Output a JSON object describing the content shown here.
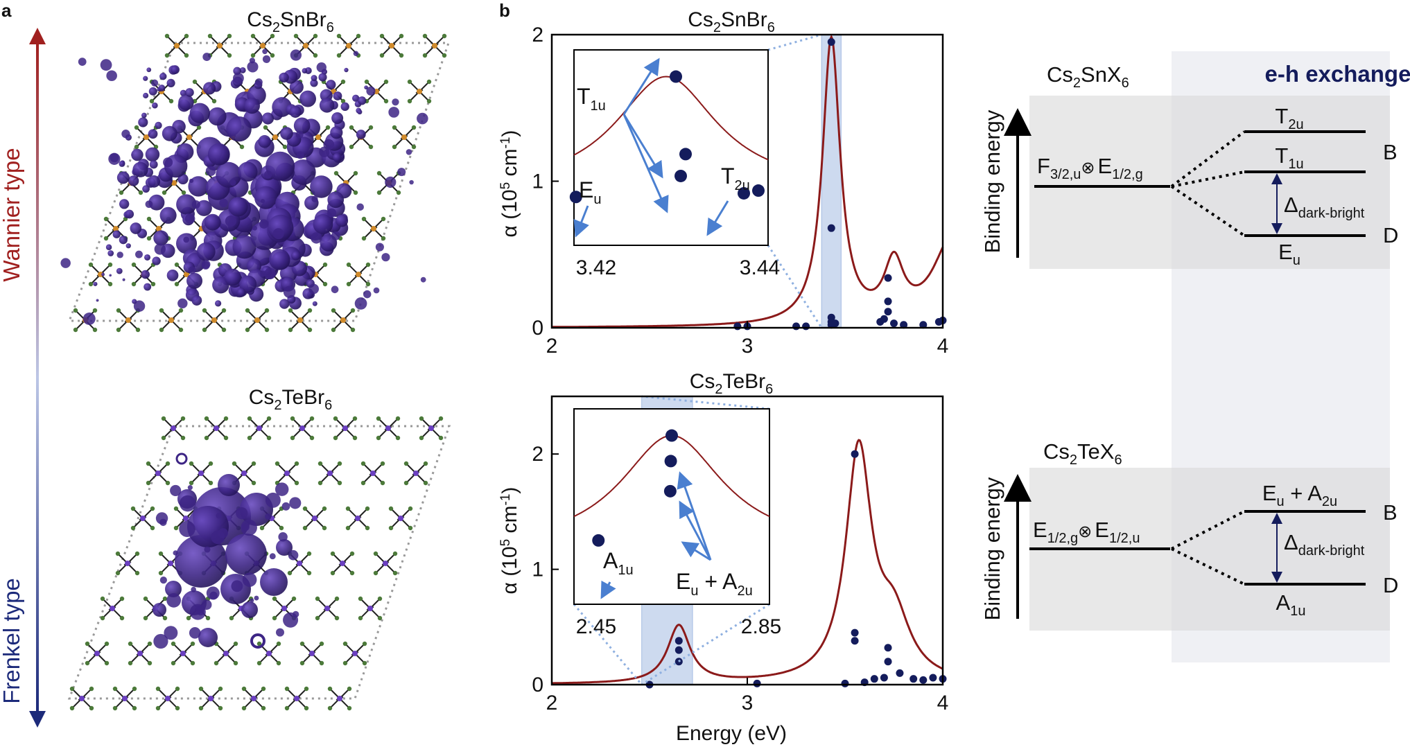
{
  "panels": {
    "a": "a",
    "b": "b"
  },
  "structures": {
    "sn": {
      "formula": "Cs",
      "n1": "2",
      "mid": "SnBr",
      "n2": "6"
    },
    "te": {
      "formula": "Cs",
      "n1": "2",
      "mid": "TeBr",
      "n2": "6"
    }
  },
  "arrow_labels": {
    "top": "Wannier type",
    "bottom": "Frenkel type"
  },
  "chart_data": [
    {
      "type": "line",
      "title": "Cs2SnBr6",
      "xlabel": "",
      "ylabel": "α (10^5 cm^-1)",
      "xlim": [
        2,
        4
      ],
      "ylim": [
        0,
        2
      ],
      "x_ticks": [
        "2",
        "3",
        "4"
      ],
      "y_ticks": [
        "0",
        "1",
        "2"
      ],
      "peaks": [
        {
          "x": 3.43,
          "y": 1.95,
          "w": 0.055
        },
        {
          "x": 3.75,
          "y": 0.38,
          "w": 0.06
        },
        {
          "x": 4.05,
          "y": 0.6,
          "w": 0.12
        }
      ],
      "highlight_x": [
        3.38,
        3.48
      ],
      "points": [
        [
          3.43,
          1.95
        ],
        [
          3.43,
          0.68
        ],
        [
          3.43,
          0.07
        ],
        [
          3.43,
          0.04
        ],
        [
          3.43,
          0.02
        ],
        [
          3.45,
          0.03
        ],
        [
          3.72,
          0.34
        ],
        [
          3.72,
          0.18
        ],
        [
          3.72,
          0.11
        ],
        [
          3.68,
          0.04
        ],
        [
          3.7,
          0.06
        ],
        [
          3.75,
          0.03
        ],
        [
          3.8,
          0.02
        ],
        [
          3.9,
          0.02
        ],
        [
          3.98,
          0.04
        ],
        [
          4.0,
          0.05
        ],
        [
          2.95,
          0.01
        ],
        [
          3.0,
          0.01
        ],
        [
          3.25,
          0.01
        ],
        [
          3.3,
          0.01
        ]
      ],
      "inset": {
        "xlim": [
          3.42,
          3.44
        ],
        "x_ticks": [
          "3.42",
          "3.44"
        ],
        "points": [
          [
            3.4305,
            1.85
          ],
          [
            3.4315,
            1.0
          ],
          [
            3.431,
            0.76
          ],
          [
            3.4375,
            0.57
          ],
          [
            3.439,
            0.6
          ],
          [
            3.4202,
            0.53
          ]
        ],
        "labels": {
          "t1u_main": "T",
          "t1u_sub": "1u",
          "eu_main": "E",
          "eu_sub": "u",
          "t2u_main": "T",
          "t2u_sub": "2u"
        }
      }
    },
    {
      "type": "line",
      "title": "Cs2TeBr6",
      "xlabel": "Energy (eV)",
      "ylabel": "α (10^5 cm^-1)",
      "xlim": [
        2,
        4
      ],
      "ylim": [
        0,
        2.5
      ],
      "x_ticks": [
        "2",
        "3",
        "4"
      ],
      "y_ticks": [
        "0",
        "1",
        "2"
      ],
      "peaks": [
        {
          "x": 2.65,
          "y": 0.5,
          "w": 0.07
        },
        {
          "x": 3.57,
          "y": 2.0,
          "w": 0.08
        },
        {
          "x": 3.75,
          "y": 0.5,
          "w": 0.1
        }
      ],
      "highlight_x": [
        2.46,
        2.72
      ],
      "points": [
        [
          3.55,
          2.0
        ],
        [
          3.55,
          0.45
        ],
        [
          3.55,
          0.38
        ],
        [
          3.72,
          0.32
        ],
        [
          3.72,
          0.2
        ],
        [
          3.78,
          0.1
        ],
        [
          3.85,
          0.05
        ],
        [
          3.9,
          0.04
        ],
        [
          3.95,
          0.06
        ],
        [
          3.5,
          0.01
        ],
        [
          3.6,
          0.02
        ],
        [
          3.65,
          0.05
        ],
        [
          3.7,
          0.06
        ],
        [
          4.0,
          0.05
        ],
        [
          2.65,
          0.38
        ],
        [
          2.65,
          0.3
        ],
        [
          2.65,
          0.2
        ],
        [
          3.05,
          0.01
        ],
        [
          2.5,
          0.0
        ]
      ],
      "inset": {
        "xlim": [
          2.45,
          2.85
        ],
        "x_ticks": [
          "2.45",
          "2.85"
        ],
        "points": [
          [
            2.65,
            1.85
          ],
          [
            2.648,
            1.57
          ],
          [
            2.647,
            1.24
          ],
          [
            2.5,
            0.7
          ]
        ],
        "labels": {
          "a1u_main": "A",
          "a1u_sub": "1u",
          "eu_main": "E",
          "eu_sub": "u",
          "plus": " + A",
          "a2u_sub": "2u"
        }
      }
    }
  ],
  "energy_diagram": {
    "exchange_label": "e-h exchange",
    "binding_energy": "Binding energy",
    "sn": {
      "header_main": "Cs",
      "header_sub1": "2",
      "header_mid": "SnX",
      "header_sub2": "6",
      "state_a": "F",
      "state_a_sub": "3/2,u",
      "otimes": "⊗",
      "state_b": "E",
      "state_b_sub": "1/2,g",
      "levels": {
        "top": "T",
        "top_sub": "2u",
        "mid": "T",
        "mid_sub": "1u",
        "bottom": "E",
        "bottom_sub": "u"
      },
      "delta": "Δ",
      "delta_sub": "dark-bright",
      "bright_letter": "B",
      "dark_letter": "D"
    },
    "te": {
      "header_main": "Cs",
      "header_sub1": "2",
      "header_mid": "TeX",
      "header_sub2": "6",
      "state_a": "E",
      "state_a_sub": "1/2,g",
      "otimes": "⊗",
      "state_b": "E",
      "state_b_sub": "1/2,u",
      "levels": {
        "top": "E",
        "top_sub": "u",
        "top_plus": " + A",
        "top_sub2": "2u",
        "bottom": "A",
        "bottom_sub": "1u"
      },
      "delta": "Δ",
      "delta_sub": "dark-bright",
      "bright_letter": "B",
      "dark_letter": "D"
    }
  },
  "colors": {
    "curve": "#8b1a1a",
    "points": "#141c5c",
    "highlight": "#b9cbe9",
    "isosurface": "#3d2585",
    "arrow_blue": "#4a7fd0",
    "atom_green": "#4c7a3a"
  }
}
